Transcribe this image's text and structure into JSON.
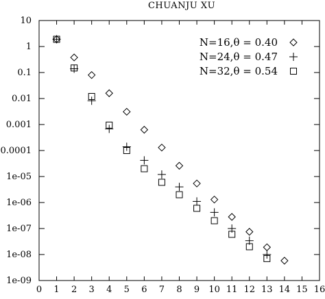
{
  "chart_data": {
    "type": "scatter",
    "title": "CHUANJU XU",
    "xlabel": "",
    "ylabel": "",
    "xlim": [
      0,
      16
    ],
    "ylim": [
      1e-09,
      10
    ],
    "yscale": "log",
    "xticks": [
      "0",
      "1",
      "2",
      "3",
      "4",
      "5",
      "6",
      "7",
      "8",
      "9",
      "10",
      "11",
      "12",
      "13",
      "14",
      "15",
      "16"
    ],
    "yticks": [
      {
        "value": 10,
        "label": "10"
      },
      {
        "value": 1,
        "label": "1"
      },
      {
        "value": 0.1,
        "label": "0.1"
      },
      {
        "value": 0.01,
        "label": "0.01"
      },
      {
        "value": 0.001,
        "label": "0.001"
      },
      {
        "value": 0.0001,
        "label": "0.0001"
      },
      {
        "value": 1e-05,
        "label": "1e-05"
      },
      {
        "value": 1e-06,
        "label": "1e-06"
      },
      {
        "value": 1e-07,
        "label": "1e-07"
      },
      {
        "value": 1e-08,
        "label": "1e-08"
      },
      {
        "value": 1e-09,
        "label": "1e-09"
      }
    ],
    "grid": false,
    "legend_position": "top-right",
    "series": [
      {
        "name": "N=16,θ = 0.40",
        "marker": "diamond",
        "x": [
          1,
          2,
          3,
          4,
          5,
          6,
          7,
          8,
          9,
          10,
          11,
          12,
          13,
          14
        ],
        "y": [
          1.9,
          0.38,
          0.08,
          0.016,
          0.0031,
          0.00063,
          0.00013,
          2.6e-05,
          5.4e-06,
          1.3e-06,
          2.8e-07,
          7.5e-08,
          1.9e-08,
          5.8e-09
        ]
      },
      {
        "name": "N=24,θ = 0.47",
        "marker": "plus",
        "x": [
          1,
          2,
          3,
          4,
          5,
          6,
          7,
          8,
          9,
          10,
          11,
          12,
          13
        ],
        "y": [
          1.9,
          0.14,
          0.0082,
          0.00068,
          0.00014,
          4.2e-05,
          1.2e-05,
          4e-06,
          1.1e-06,
          4.2e-07,
          1e-07,
          3.4e-08,
          1e-08
        ]
      },
      {
        "name": "N=32,θ = 0.54",
        "marker": "square",
        "x": [
          1,
          2,
          3,
          4,
          5,
          6,
          7,
          8,
          9,
          10,
          11,
          12,
          13
        ],
        "y": [
          1.9,
          0.15,
          0.012,
          0.00095,
          0.0001,
          2e-05,
          6e-06,
          2e-06,
          6e-07,
          2e-07,
          6e-08,
          2e-08,
          7e-09
        ]
      }
    ]
  }
}
